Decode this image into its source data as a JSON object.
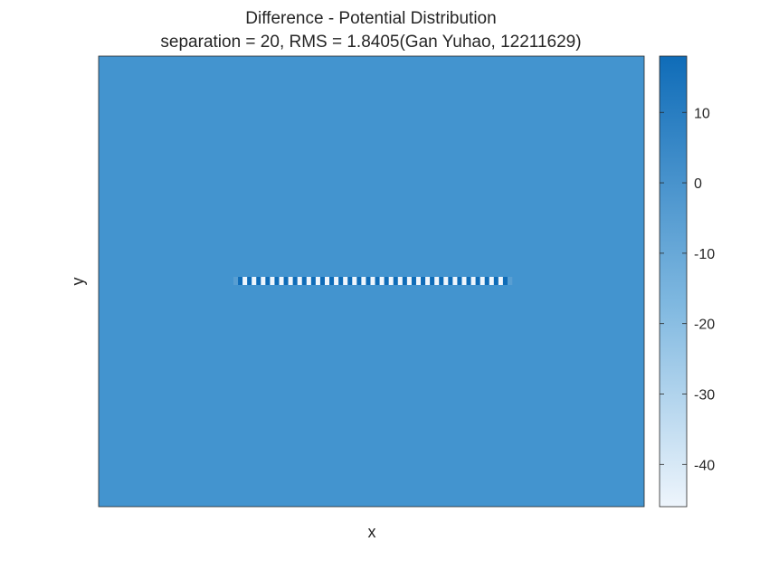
{
  "chart_data": {
    "type": "heatmap",
    "title": "Difference - Potential Distribution",
    "subtitle": "separation = 20, RMS = 1.8405(Gan Yuhao, 12211629)",
    "xlabel": "x",
    "ylabel": "y",
    "x_ticks_visible": false,
    "y_ticks_visible": false,
    "background_value": 0,
    "colorbar": {
      "limits": [
        -46,
        18
      ],
      "ticks": [
        10,
        0,
        -10,
        -20,
        -30,
        -40
      ],
      "tick_labels": [
        "10",
        "0",
        "-10",
        "-20",
        "-30",
        "-40"
      ],
      "colormap_low": "#eef5fc",
      "colormap_high": "#0f6cb8",
      "background_color": "#4394cf"
    },
    "line_feature": {
      "description_values": "alternating strip along the electrode line",
      "cells": [
        -5,
        18,
        -46,
        18,
        -46,
        18,
        -46,
        18,
        -46,
        18,
        -46,
        18,
        -46,
        18,
        -46,
        18,
        -46,
        18,
        -46,
        18,
        -46,
        18,
        -46,
        18,
        -46,
        18,
        -46,
        18,
        -46,
        18,
        -46,
        18,
        -46,
        18,
        -46,
        18,
        -46,
        18,
        -46,
        18,
        -46,
        18,
        -46,
        18,
        -46,
        18,
        -46,
        18,
        -46,
        18,
        -46,
        18,
        -46,
        18,
        -46,
        18,
        -46,
        18,
        -46,
        18,
        -5
      ]
    }
  }
}
